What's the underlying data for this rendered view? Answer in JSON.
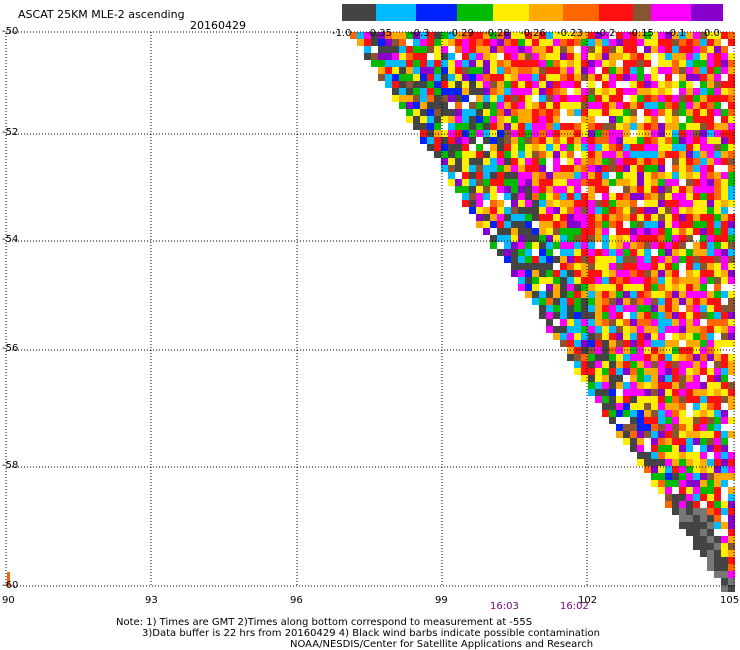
{
  "header": {
    "title": "ASCAT 25KM MLE-2 ascending",
    "date": "20160429"
  },
  "legend": {
    "swatches": [
      "#444444",
      "#00bbff",
      "#0022ff",
      "#00bb00",
      "#ffee00",
      "#ffaa00",
      "#ff6600",
      "#ff1111",
      "#885533",
      "#ff00ff",
      "#8800cc"
    ],
    "labels": [
      "-1.0",
      "-0.35",
      "-0.3",
      "-0.29",
      "-0.28",
      "-0.26",
      "-0.23",
      "-0.2",
      "-0.15",
      "-0.1",
      "0.0"
    ]
  },
  "axes": {
    "lat_labels": [
      "-50",
      "-52",
      "-54",
      "-56",
      "-58",
      "-60"
    ],
    "lon_labels": [
      "90",
      "93",
      "96",
      "99",
      "102",
      "105"
    ]
  },
  "times": [
    "16:03",
    "16:02"
  ],
  "notes": [
    "Note: 1) Times are GMT 2)Times along bottom correspond to measurement at -55S",
    "3)Data buffer is 22 hrs from 20160429 4) Black wind barbs indicate possible contamination",
    "NOAA/NESDIS/Center for Satellite Applications and Research"
  ]
}
